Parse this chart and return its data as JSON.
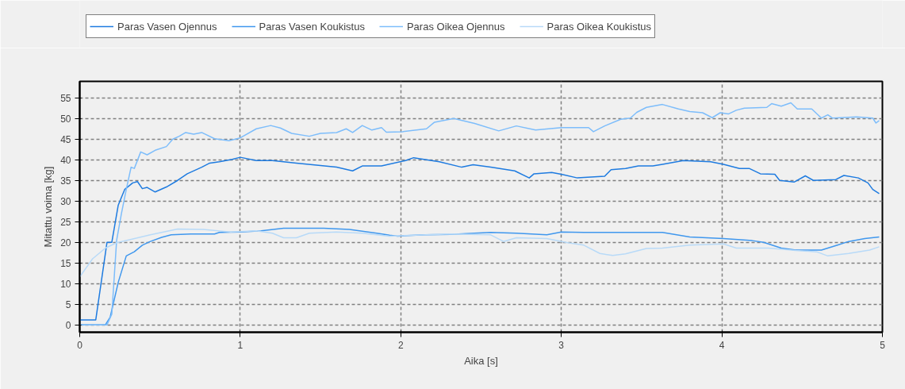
{
  "chart_data": {
    "type": "line",
    "xlabel": "Aika [s]",
    "ylabel": "Mitattu voima [kg]",
    "xlim": [
      0,
      5
    ],
    "ylim": [
      -1.8,
      59
    ],
    "xticks": [
      0,
      1,
      2,
      3,
      4,
      5
    ],
    "yticks": [
      0,
      5,
      10,
      15,
      20,
      25,
      30,
      35,
      40,
      45,
      50,
      55
    ],
    "grid": true,
    "legend": "top",
    "marker": "none",
    "series": [
      {
        "name": "Paras Vasen Ojennus",
        "color": "#1e7be0",
        "x": [
          0,
          0.1,
          0.17,
          0.2,
          0.24,
          0.28,
          0.33,
          0.36,
          0.39,
          0.42,
          0.47,
          0.54,
          0.61,
          0.67,
          0.76,
          0.81,
          0.87,
          0.95,
          1.0,
          1.1,
          1.2,
          1.35,
          1.6,
          1.7,
          1.76,
          1.88,
          2.03,
          2.08,
          2.24,
          2.38,
          2.45,
          2.56,
          2.71,
          2.8,
          2.83,
          2.94,
          3.0,
          3.1,
          3.27,
          3.31,
          3.4,
          3.48,
          3.57,
          3.63,
          3.76,
          3.93,
          4.01,
          4.11,
          4.17,
          4.24,
          4.33,
          4.36,
          4.45,
          4.52,
          4.57,
          4.71,
          4.76,
          4.85,
          4.91,
          4.94,
          4.98
        ],
        "values": [
          1.2,
          1.2,
          20,
          20,
          29,
          32.8,
          34.4,
          34.7,
          33,
          33.3,
          32.2,
          33.4,
          35,
          36.6,
          38.2,
          39.2,
          39.5,
          40.1,
          40.6,
          39.8,
          39.8,
          39.2,
          38.2,
          37.3,
          38.5,
          38.5,
          39.8,
          40.5,
          39.5,
          38.2,
          38.8,
          38.2,
          37.3,
          35.6,
          36.6,
          36.9,
          36.5,
          35.6,
          36,
          37.6,
          37.9,
          38.5,
          38.5,
          38.9,
          39.8,
          39.5,
          38.9,
          37.9,
          37.9,
          36.6,
          36.5,
          35,
          34.6,
          36.1,
          35,
          35.2,
          36.2,
          35.6,
          34.4,
          32.8,
          31.8
        ]
      },
      {
        "name": "Paras Vasen Koukistus",
        "color": "#3f97ee",
        "x": [
          0,
          0.16,
          0.19,
          0.24,
          0.29,
          0.34,
          0.39,
          0.44,
          0.51,
          0.57,
          0.69,
          0.84,
          0.87,
          1.0,
          1.13,
          1.27,
          1.52,
          1.68,
          1.85,
          1.93,
          1.98,
          2.15,
          2.31,
          2.56,
          2.72,
          2.91,
          3.0,
          3.14,
          3.47,
          3.63,
          3.8,
          4.01,
          4.19,
          4.26,
          4.37,
          4.46,
          4.62,
          4.72,
          4.79,
          4.89,
          4.98
        ],
        "values": [
          0,
          0,
          1.9,
          10.3,
          16.7,
          17.7,
          19.3,
          20.2,
          21.2,
          21.8,
          22,
          22,
          22.4,
          22.5,
          22.8,
          23.4,
          23.4,
          23.1,
          22.2,
          21.7,
          21.5,
          21.8,
          21.9,
          22.4,
          22.2,
          21.8,
          22.5,
          22.4,
          22.4,
          22.4,
          21.3,
          20.9,
          20.4,
          20,
          18.6,
          18.1,
          18.1,
          19.3,
          20.2,
          20.9,
          21.3
        ]
      },
      {
        "name": "Paras Oikea Ojennus",
        "color": "#7dbdfb",
        "x": [
          0,
          0.17,
          0.2,
          0.23,
          0.26,
          0.29,
          0.32,
          0.34,
          0.38,
          0.42,
          0.47,
          0.54,
          0.58,
          0.62,
          0.66,
          0.71,
          0.76,
          0.84,
          0.93,
          1.0,
          1.1,
          1.19,
          1.25,
          1.32,
          1.43,
          1.5,
          1.6,
          1.66,
          1.7,
          1.76,
          1.82,
          1.88,
          1.91,
          2.01,
          2.16,
          2.21,
          2.33,
          2.46,
          2.61,
          2.72,
          2.84,
          3.0,
          3.17,
          3.2,
          3.27,
          3.37,
          3.43,
          3.47,
          3.53,
          3.63,
          3.73,
          3.8,
          3.88,
          3.94,
          3.99,
          4.04,
          4.09,
          4.14,
          4.28,
          4.31,
          4.37,
          4.43,
          4.47,
          4.56,
          4.62,
          4.66,
          4.69,
          4.84,
          4.94,
          4.96,
          4.98
        ],
        "values": [
          0,
          0,
          2.6,
          20.5,
          27,
          32.8,
          38.2,
          37.9,
          41.9,
          41.2,
          42.3,
          43.2,
          45,
          45.7,
          46.6,
          46.2,
          46.6,
          45.1,
          44.6,
          45.3,
          47.5,
          48.3,
          47.7,
          46.4,
          45.7,
          46.4,
          46.6,
          47.5,
          46.6,
          48.3,
          47.2,
          47.8,
          46.7,
          46.8,
          47.5,
          49.1,
          50,
          48.8,
          47,
          48.2,
          47.2,
          47.8,
          47.8,
          46.8,
          48.2,
          49.8,
          50.1,
          51.5,
          52.7,
          53.4,
          52.3,
          51.7,
          51.4,
          50.2,
          51.4,
          51.1,
          52,
          52.5,
          52.7,
          53.6,
          53,
          53.8,
          52.3,
          52.3,
          50.1,
          50.9,
          50.1,
          50.4,
          50.1,
          48.9,
          49.5
        ]
      },
      {
        "name": "Paras Oikea Koukistus",
        "color": "#b8daf8",
        "x": [
          0,
          0.08,
          0.16,
          0.23,
          0.31,
          0.44,
          0.61,
          0.77,
          0.94,
          1.1,
          1.2,
          1.27,
          1.35,
          1.43,
          1.6,
          1.76,
          1.93,
          2.31,
          2.56,
          2.64,
          2.72,
          2.91,
          3.04,
          3.14,
          3.24,
          3.32,
          3.4,
          3.53,
          3.63,
          3.8,
          4.01,
          4.09,
          4.29,
          4.46,
          4.59,
          4.66,
          4.79,
          4.92,
          4.98
        ],
        "values": [
          11.6,
          16,
          18.6,
          19.9,
          20.6,
          21.8,
          23.2,
          23.1,
          22.5,
          22.8,
          22.2,
          21.1,
          21.1,
          22.2,
          22.5,
          22.2,
          21.5,
          22,
          21.8,
          20.2,
          21.1,
          20.9,
          19.9,
          19.3,
          17.3,
          16.8,
          17.2,
          18.5,
          18.6,
          19.3,
          19.6,
          18.6,
          18.6,
          18,
          17.7,
          16.7,
          17.3,
          18.1,
          18.9
        ]
      }
    ]
  }
}
